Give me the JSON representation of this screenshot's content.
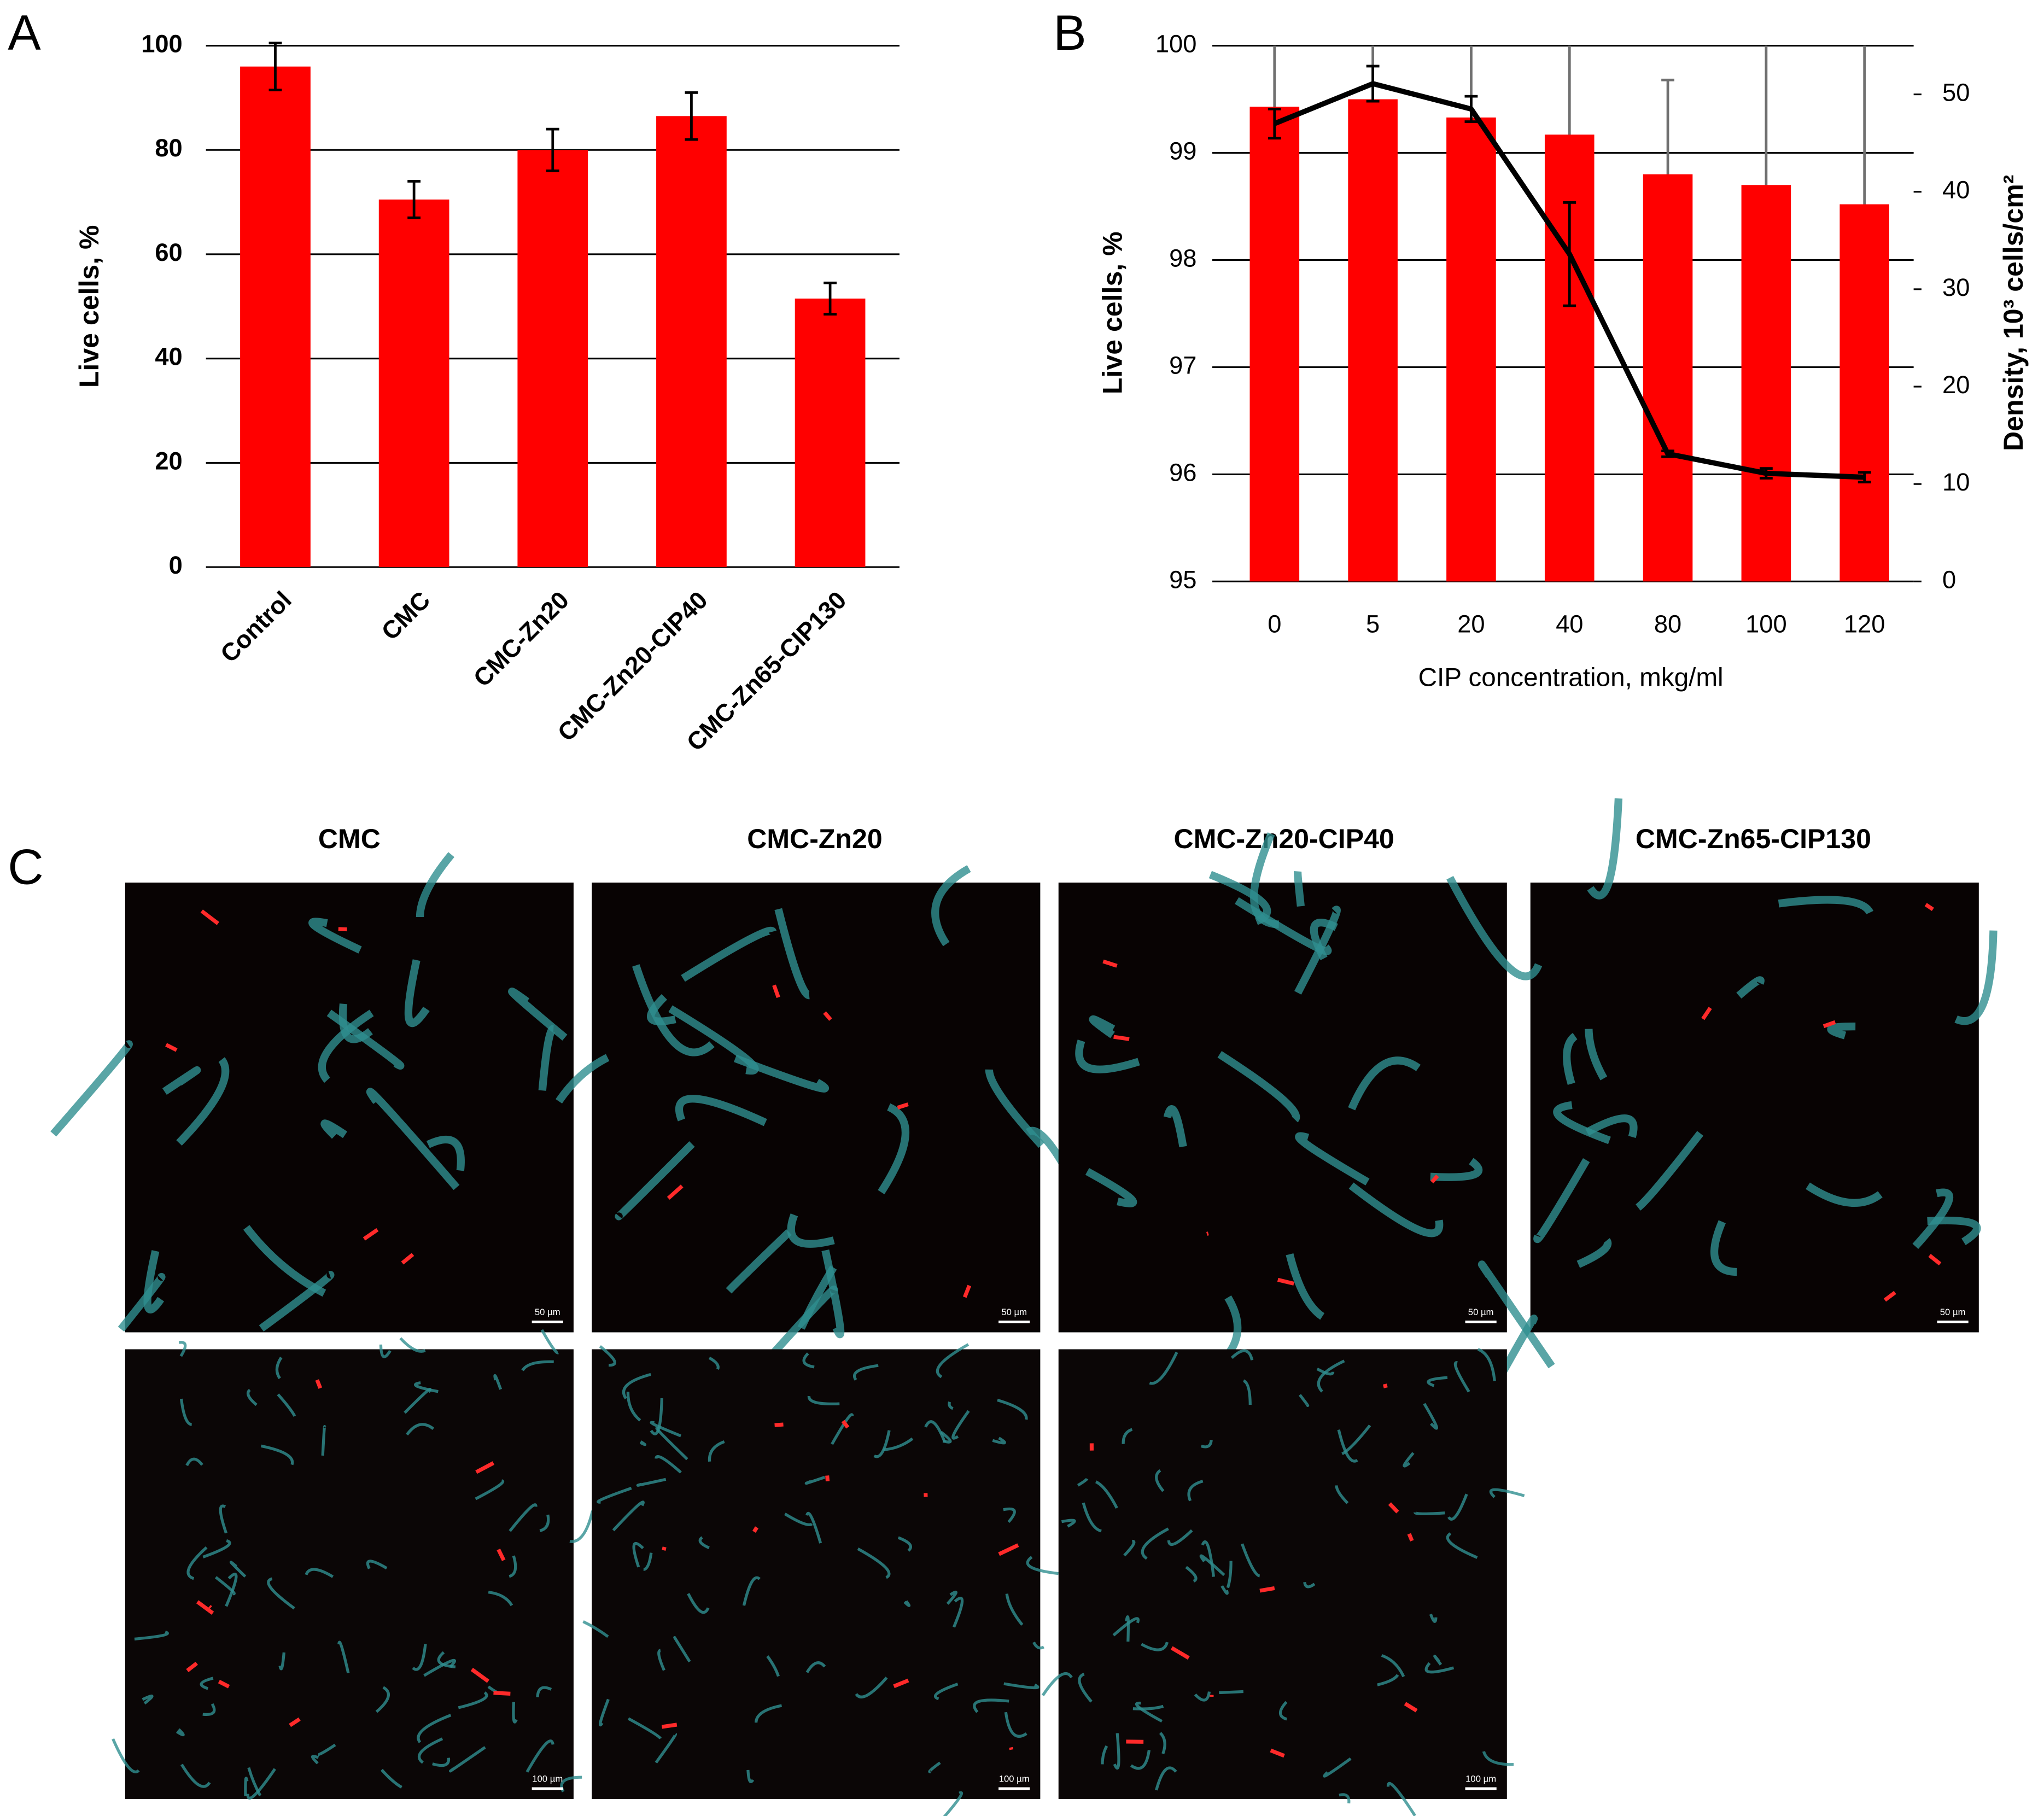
{
  "chart_data": [
    {
      "type": "bar",
      "panel_label": "A",
      "y_label": "Live cells, %",
      "categories": [
        "Control",
        "CMC",
        "CMC-Zn20",
        "CMC-Zn20-CIP40",
        "CMC-Zn65-CIP130"
      ],
      "values": [
        96,
        70.5,
        80,
        86.5,
        51.5
      ],
      "errors": [
        4.5,
        3.5,
        4,
        4.5,
        3
      ],
      "color": "#ff0000",
      "ylim": [
        0,
        100
      ],
      "yticks": [
        0,
        20,
        40,
        60,
        80,
        100
      ],
      "grid": true
    },
    {
      "type": "combo",
      "panel_label": "B",
      "y_label": "Live cells, %",
      "y2_label": "Density, 10³ cells/cm²",
      "x_label": "CIP concentration, mkg/ml",
      "categories": [
        "0",
        "5",
        "20",
        "40",
        "80",
        "100",
        "120"
      ],
      "series": [
        {
          "type": "bar",
          "color": "#ff0000",
          "error_color": "#707070",
          "axis": "y",
          "values": [
            99.43,
            99.5,
            99.33,
            99.17,
            98.8,
            98.7,
            98.52
          ],
          "errors": [
            1.73,
            1.65,
            3.05,
            3.1,
            0.88,
            1.5,
            2.7
          ]
        },
        {
          "type": "line",
          "color": "#000000",
          "axis": "y2",
          "values": [
            47,
            51.1,
            48.5,
            33.6,
            13.1,
            11.1,
            10.7
          ],
          "errors": [
            1.5,
            1.8,
            1.3,
            5.3,
            0.3,
            0.5,
            0.5
          ]
        }
      ],
      "ylim": [
        95,
        100
      ],
      "yticks": [
        95,
        96,
        97,
        98,
        99,
        100
      ],
      "y2lim": [
        0,
        55
      ],
      "y2ticks": [
        0,
        10,
        20,
        30,
        40,
        50
      ],
      "grid": true
    }
  ],
  "micrographs": {
    "panel_label": "C",
    "titles": [
      "CMC",
      "CMC-Zn20",
      "CMC-Zn20-CIP40",
      "CMC-Zn65-CIP130"
    ],
    "scale_bars": [
      "50 µm",
      "50 µm",
      "50 µm",
      "50 µm",
      "100 µm",
      "100 µm",
      "100 µm"
    ]
  }
}
